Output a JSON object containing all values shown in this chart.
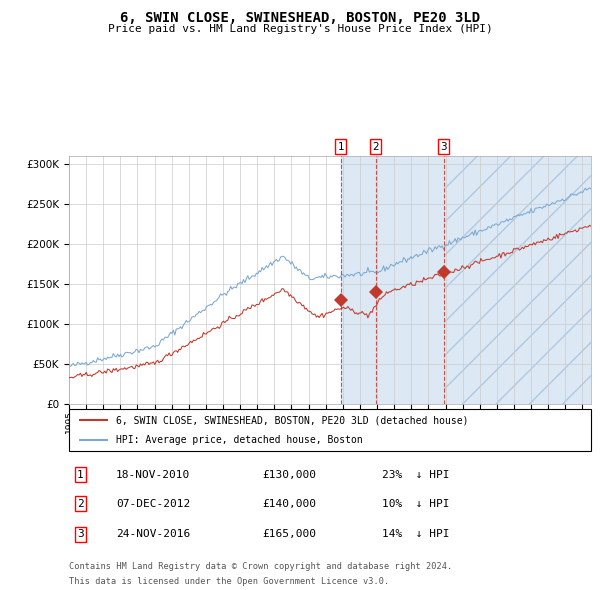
{
  "title": "6, SWIN CLOSE, SWINESHEAD, BOSTON, PE20 3LD",
  "subtitle": "Price paid vs. HM Land Registry's House Price Index (HPI)",
  "ylim": [
    0,
    310000
  ],
  "yticks": [
    0,
    50000,
    100000,
    150000,
    200000,
    250000,
    300000
  ],
  "ytick_labels": [
    "£0",
    "£50K",
    "£100K",
    "£150K",
    "£200K",
    "£250K",
    "£300K"
  ],
  "xstart": 1995.0,
  "xend": 2025.5,
  "hpi_color": "#7aa8d2",
  "price_color": "#c0392b",
  "grid_color": "#cccccc",
  "shaded_color": "#dce9f5",
  "transactions": [
    {
      "label": "1",
      "date_num": 2010.88,
      "price": 130000,
      "date_str": "18-NOV-2010",
      "pct": "23%",
      "dir": "↓"
    },
    {
      "label": "2",
      "date_num": 2012.93,
      "price": 140000,
      "date_str": "07-DEC-2012",
      "pct": "10%",
      "dir": "↓"
    },
    {
      "label": "3",
      "date_num": 2016.9,
      "price": 165000,
      "date_str": "24-NOV-2016",
      "pct": "14%",
      "dir": "↓"
    }
  ],
  "legend_line1": "6, SWIN CLOSE, SWINESHEAD, BOSTON, PE20 3LD (detached house)",
  "legend_line2": "HPI: Average price, detached house, Boston",
  "footer1": "Contains HM Land Registry data © Crown copyright and database right 2024.",
  "footer2": "This data is licensed under the Open Government Licence v3.0."
}
